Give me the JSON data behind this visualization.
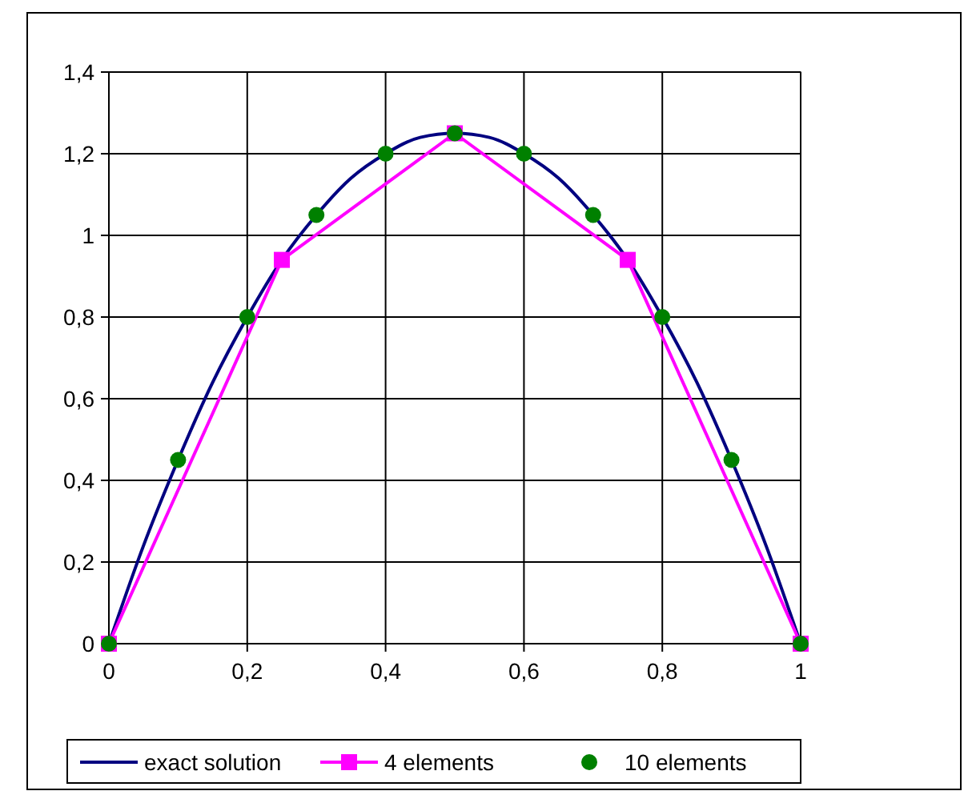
{
  "chart_data": {
    "type": "line",
    "xlim": [
      0,
      1
    ],
    "ylim": [
      0,
      1.4
    ],
    "xticks": [
      0,
      {
        "value": 0.2,
        "label": "0,2"
      },
      {
        "value": 0.4,
        "label": "0,4"
      },
      {
        "value": 0.6,
        "label": "0,6"
      },
      {
        "value": 0.8,
        "label": "0,8"
      },
      1
    ],
    "yticks": [
      0,
      {
        "value": 0.2,
        "label": "0,2"
      },
      {
        "value": 0.4,
        "label": "0,4"
      },
      {
        "value": 0.6,
        "label": "0,6"
      },
      {
        "value": 0.8,
        "label": "0,8"
      },
      1,
      {
        "value": 1.2,
        "label": "1,2"
      },
      {
        "value": 1.4,
        "label": "1,4"
      }
    ],
    "grid": true,
    "legend": "bottom",
    "series": [
      {
        "name": "exact solution",
        "marker": "none",
        "color": "#000080",
        "x": [
          0,
          0.05,
          0.1,
          0.15,
          0.2,
          0.25,
          0.3,
          0.35,
          0.4,
          0.45,
          0.5,
          0.55,
          0.6,
          0.65,
          0.7,
          0.75,
          0.8,
          0.85,
          0.9,
          0.95,
          1
        ],
        "values": [
          0,
          0.24,
          0.45,
          0.64,
          0.8,
          0.94,
          1.05,
          1.14,
          1.2,
          1.24,
          1.25,
          1.24,
          1.2,
          1.14,
          1.05,
          0.94,
          0.8,
          0.64,
          0.45,
          0.24,
          0
        ]
      },
      {
        "name": "4 elements",
        "marker": "square",
        "color": "#ff00ff",
        "x": [
          0,
          0.25,
          0.5,
          0.75,
          1
        ],
        "values": [
          0,
          0.94,
          1.25,
          0.94,
          0
        ]
      },
      {
        "name": "10 elements",
        "type": "scatter",
        "marker": "circle",
        "color": "#008000",
        "x": [
          0,
          0.1,
          0.2,
          0.3,
          0.4,
          0.5,
          0.6,
          0.7,
          0.8,
          0.9,
          1
        ],
        "values": [
          0,
          0.45,
          0.8,
          1.05,
          1.2,
          1.25,
          1.2,
          1.05,
          0.8,
          0.45,
          0
        ]
      }
    ]
  }
}
